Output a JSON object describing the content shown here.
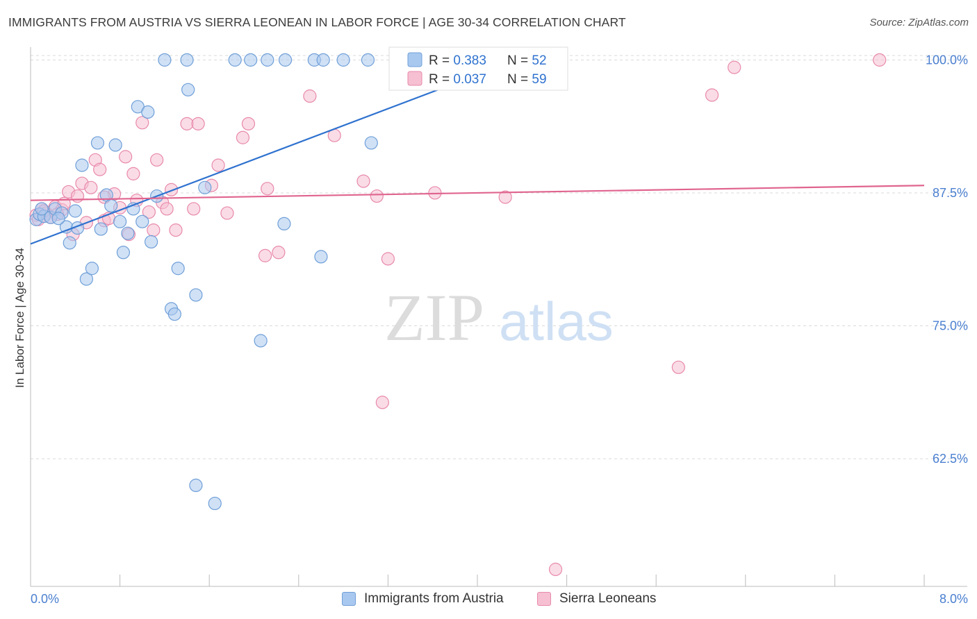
{
  "header": {
    "title": "IMMIGRANTS FROM AUSTRIA VS SIERRA LEONEAN IN LABOR FORCE | AGE 30-34 CORRELATION CHART",
    "source": "Source: ZipAtlas.com"
  },
  "watermark": {
    "zip": "ZIP",
    "atlas": "atlas"
  },
  "colors": {
    "blue_fill": "#a9c8ef",
    "blue_stroke": "#6f9fd8",
    "blue_line": "#2f72cf",
    "pink_fill": "#f6bfd2",
    "pink_stroke": "#e889ab",
    "pink_line": "#e0648f",
    "tick_label": "#4a7fd0",
    "grid": "#d9d9d9"
  },
  "stats_box": {
    "r_label": "R = ",
    "n_label": "N = ",
    "rows": [
      {
        "r": "0.383",
        "n": "52"
      },
      {
        "r": "0.037",
        "n": "59"
      }
    ]
  },
  "chart_data": {
    "type": "scatter",
    "title": "IMMIGRANTS FROM AUSTRIA VS SIERRA LEONEAN IN LABOR FORCE | AGE 30-34 CORRELATION CHART",
    "xlabel": "",
    "ylabel": "In Labor Force | Age 30-34",
    "xlim": [
      0,
      8
    ],
    "ylim": [
      50.5,
      101.2
    ],
    "x_tick_labels": [
      "0.0%",
      "8.0%"
    ],
    "y_ticks": [
      62.5,
      75.0,
      87.5,
      100.0
    ],
    "y_tick_labels": [
      "62.5%",
      "75.0%",
      "87.5%",
      "100.0%"
    ],
    "grid": "horizontal dashed",
    "legend_position": "bottom-center",
    "series": [
      {
        "name": "Immigrants from Austria",
        "r": 0.383,
        "n": 52,
        "trend": [
          [
            0.0,
            82.7
          ],
          [
            3.85,
            98.0
          ]
        ],
        "points": [
          [
            0.05,
            85.0
          ],
          [
            0.08,
            85.5
          ],
          [
            0.12,
            85.3
          ],
          [
            0.18,
            85.2
          ],
          [
            0.22,
            86.0
          ],
          [
            0.28,
            85.6
          ],
          [
            0.32,
            84.3
          ],
          [
            0.35,
            82.8
          ],
          [
            0.4,
            85.8
          ],
          [
            0.42,
            84.2
          ],
          [
            0.46,
            90.1
          ],
          [
            0.5,
            79.4
          ],
          [
            0.55,
            80.4
          ],
          [
            0.6,
            92.2
          ],
          [
            0.63,
            84.1
          ],
          [
            0.68,
            87.3
          ],
          [
            0.72,
            86.3
          ],
          [
            0.76,
            92.0
          ],
          [
            0.8,
            84.8
          ],
          [
            0.83,
            81.9
          ],
          [
            0.87,
            83.7
          ],
          [
            0.92,
            86.0
          ],
          [
            0.96,
            95.6
          ],
          [
            1.0,
            84.8
          ],
          [
            1.05,
            95.1
          ],
          [
            1.08,
            82.9
          ],
          [
            1.13,
            87.2
          ],
          [
            1.2,
            100.0
          ],
          [
            1.26,
            76.6
          ],
          [
            1.29,
            76.1
          ],
          [
            1.32,
            80.4
          ],
          [
            1.4,
            100.0
          ],
          [
            1.41,
            97.2
          ],
          [
            1.48,
            77.9
          ],
          [
            1.56,
            88.0
          ],
          [
            1.48,
            60.0
          ],
          [
            1.65,
            58.3
          ],
          [
            1.83,
            100.0
          ],
          [
            1.97,
            100.0
          ],
          [
            2.06,
            73.6
          ],
          [
            2.12,
            100.0
          ],
          [
            2.28,
            100.0
          ],
          [
            2.27,
            84.6
          ],
          [
            2.54,
            100.0
          ],
          [
            2.62,
            100.0
          ],
          [
            2.6,
            81.5
          ],
          [
            2.8,
            100.0
          ],
          [
            3.05,
            92.2
          ],
          [
            3.02,
            100.0
          ],
          [
            3.38,
            100.0
          ],
          [
            0.1,
            86.0
          ],
          [
            0.25,
            85.1
          ]
        ]
      },
      {
        "name": "Sierra Leoneans",
        "r": 0.037,
        "n": 59,
        "trend": [
          [
            0.0,
            86.8
          ],
          [
            8.0,
            88.2
          ]
        ],
        "points": [
          [
            0.05,
            85.4
          ],
          [
            0.1,
            86.0
          ],
          [
            0.14,
            85.6
          ],
          [
            0.18,
            85.2
          ],
          [
            0.22,
            86.2
          ],
          [
            0.28,
            85.9
          ],
          [
            0.34,
            87.6
          ],
          [
            0.38,
            83.6
          ],
          [
            0.42,
            87.2
          ],
          [
            0.46,
            88.4
          ],
          [
            0.5,
            84.7
          ],
          [
            0.54,
            88.0
          ],
          [
            0.58,
            90.6
          ],
          [
            0.62,
            89.7
          ],
          [
            0.66,
            84.9
          ],
          [
            0.7,
            85.1
          ],
          [
            0.75,
            87.4
          ],
          [
            0.8,
            86.1
          ],
          [
            0.85,
            90.9
          ],
          [
            0.88,
            83.6
          ],
          [
            0.92,
            89.3
          ],
          [
            0.95,
            86.8
          ],
          [
            1.0,
            94.1
          ],
          [
            1.06,
            85.7
          ],
          [
            1.1,
            84.0
          ],
          [
            1.13,
            90.6
          ],
          [
            1.18,
            86.6
          ],
          [
            1.22,
            86.0
          ],
          [
            1.26,
            87.8
          ],
          [
            1.3,
            84.0
          ],
          [
            1.4,
            94.0
          ],
          [
            1.46,
            86.0
          ],
          [
            1.5,
            94.0
          ],
          [
            1.62,
            88.2
          ],
          [
            1.68,
            90.1
          ],
          [
            1.76,
            85.6
          ],
          [
            1.9,
            92.7
          ],
          [
            1.95,
            94.0
          ],
          [
            2.1,
            81.6
          ],
          [
            2.12,
            87.9
          ],
          [
            2.22,
            81.9
          ],
          [
            2.5,
            96.6
          ],
          [
            2.72,
            92.9
          ],
          [
            2.98,
            88.6
          ],
          [
            3.1,
            87.2
          ],
          [
            3.15,
            67.8
          ],
          [
            3.2,
            81.3
          ],
          [
            3.62,
            87.5
          ],
          [
            4.25,
            87.1
          ],
          [
            4.7,
            52.1
          ],
          [
            5.8,
            71.1
          ],
          [
            6.1,
            96.7
          ],
          [
            6.3,
            99.3
          ],
          [
            7.6,
            100.0
          ],
          [
            0.3,
            86.5
          ],
          [
            0.66,
            87.1
          ],
          [
            0.24,
            85.5
          ],
          [
            0.12,
            85.8
          ],
          [
            0.07,
            85.0
          ]
        ]
      }
    ]
  }
}
